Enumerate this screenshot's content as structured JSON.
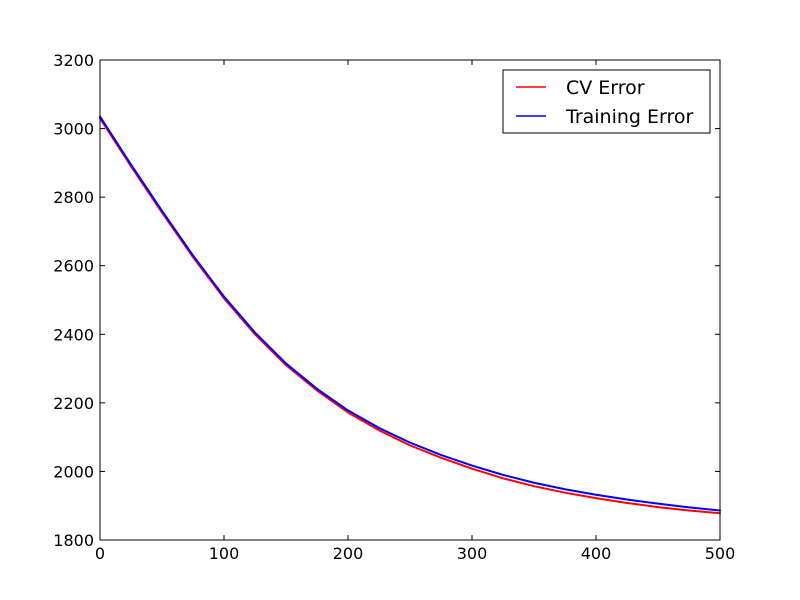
{
  "chart_data": {
    "type": "line",
    "title": "",
    "xlabel": "",
    "ylabel": "",
    "xlim": [
      0,
      500
    ],
    "ylim": [
      1800,
      3200
    ],
    "xticks": [
      0,
      100,
      200,
      300,
      400,
      500
    ],
    "yticks": [
      1800,
      2000,
      2200,
      2400,
      2600,
      2800,
      3000,
      3200
    ],
    "grid": false,
    "legend_position": "top-right",
    "x": [
      0,
      25,
      50,
      75,
      100,
      125,
      150,
      175,
      200,
      225,
      250,
      275,
      300,
      325,
      350,
      375,
      400,
      425,
      450,
      475,
      500
    ],
    "series": [
      {
        "name": "CV Error",
        "color": "#ff0000",
        "values": [
          3030,
          2890,
          2755,
          2625,
          2505,
          2400,
          2310,
          2236,
          2172,
          2120,
          2076,
          2040,
          2008,
          1980,
          1957,
          1938,
          1922,
          1908,
          1896,
          1886,
          1878
        ]
      },
      {
        "name": "Training Error",
        "color": "#0000ff",
        "values": [
          3035,
          2895,
          2760,
          2630,
          2510,
          2405,
          2315,
          2241,
          2178,
          2127,
          2084,
          2048,
          2017,
          1990,
          1967,
          1948,
          1932,
          1918,
          1906,
          1895,
          1886
        ]
      }
    ]
  }
}
